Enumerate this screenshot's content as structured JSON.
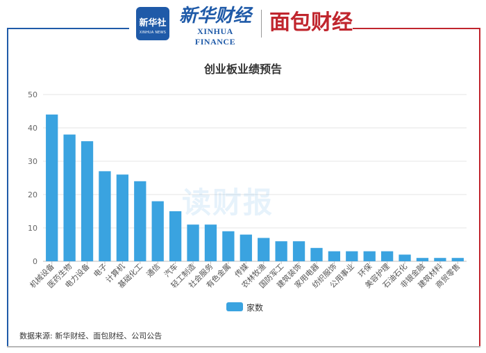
{
  "header": {
    "logo1_cn": "新华社",
    "logo1_en": "XINHUA NEWS",
    "logo2_cn": "新华财经",
    "logo2_en": "XINHUA FINANCE",
    "logo3": "面包财经",
    "watermark": "读财报"
  },
  "colors": {
    "bar": "#3aa3e0",
    "blue_frame": "#1f5aa8",
    "red_frame": "#c0252d"
  },
  "chart_data": {
    "type": "bar",
    "title": "创业板业绩预告",
    "categories": [
      "机械设备",
      "医药生物",
      "电力设备",
      "电子",
      "计算机",
      "基础化工",
      "通信",
      "汽车",
      "轻工制造",
      "社会服务",
      "有色金属",
      "传媒",
      "农林牧渔",
      "国防军工",
      "建筑装饰",
      "家用电器",
      "纺织服饰",
      "公用事业",
      "环保",
      "美容护理",
      "石油石化",
      "非银金融",
      "建筑材料",
      "商贸零售"
    ],
    "series": [
      {
        "name": "家数",
        "values": [
          44,
          38,
          36,
          27,
          26,
          24,
          18,
          15,
          11,
          11,
          9,
          8,
          7,
          6,
          6,
          4,
          3,
          3,
          3,
          3,
          2,
          1,
          1,
          1
        ]
      }
    ],
    "ylim": [
      0,
      50
    ],
    "yticks": [
      "0",
      "10",
      "20",
      "30",
      "40",
      "50"
    ],
    "grid": true,
    "legend": "bottom"
  },
  "footer": {
    "source": "数据来源: 新华财经、面包财经、公司公告"
  }
}
